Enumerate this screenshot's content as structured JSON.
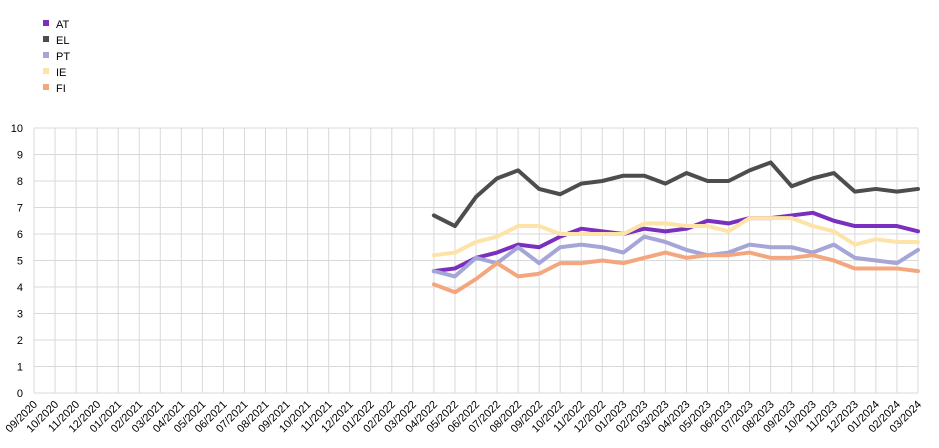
{
  "chart_data": {
    "type": "line",
    "title": "",
    "xlabel": "",
    "ylabel": "",
    "ylim": [
      0,
      10
    ],
    "yticks": [
      "0",
      "1",
      "2",
      "3",
      "4",
      "5",
      "6",
      "7",
      "8",
      "9",
      "10"
    ],
    "grid": true,
    "legend_position": "top-left",
    "categories": [
      "09/2020",
      "10/2020",
      "11/2020",
      "12/2020",
      "01/2021",
      "02/2021",
      "03/2021",
      "04/2021",
      "05/2021",
      "06/2021",
      "07/2021",
      "08/2021",
      "09/2021",
      "10/2021",
      "11/2021",
      "12/2021",
      "01/2022",
      "02/2022",
      "03/2022",
      "04/2022",
      "05/2022",
      "06/2022",
      "07/2022",
      "08/2022",
      "09/2022",
      "10/2022",
      "11/2022",
      "12/2022",
      "01/2023",
      "02/2023",
      "03/2023",
      "04/2023",
      "05/2023",
      "06/2023",
      "07/2023",
      "08/2023",
      "09/2023",
      "10/2023",
      "11/2023",
      "12/2023",
      "01/2024",
      "02/2024",
      "03/2024"
    ],
    "series": [
      {
        "name": "AT",
        "color": "#7B2FBE",
        "values": [
          null,
          null,
          null,
          null,
          null,
          null,
          null,
          null,
          null,
          null,
          null,
          null,
          null,
          null,
          null,
          null,
          null,
          null,
          null,
          4.6,
          4.7,
          5.1,
          5.3,
          5.6,
          5.5,
          5.9,
          6.2,
          6.1,
          6.0,
          6.2,
          6.1,
          6.2,
          6.5,
          6.4,
          6.6,
          6.6,
          6.7,
          6.8,
          6.5,
          6.3,
          6.3,
          6.3,
          6.1
        ]
      },
      {
        "name": "EL",
        "color": "#4D4D4D",
        "values": [
          null,
          null,
          null,
          null,
          null,
          null,
          null,
          null,
          null,
          null,
          null,
          null,
          null,
          null,
          null,
          null,
          null,
          null,
          null,
          6.7,
          6.3,
          7.4,
          8.1,
          8.4,
          7.7,
          7.5,
          7.9,
          8.0,
          8.2,
          8.2,
          7.9,
          8.3,
          8.0,
          8.0,
          8.4,
          8.7,
          7.8,
          8.1,
          8.3,
          7.6,
          7.7,
          7.6,
          7.7
        ]
      },
      {
        "name": "PT",
        "color": "#A5A5D8",
        "values": [
          null,
          null,
          null,
          null,
          null,
          null,
          null,
          null,
          null,
          null,
          null,
          null,
          null,
          null,
          null,
          null,
          null,
          null,
          null,
          4.6,
          4.4,
          5.1,
          4.9,
          5.5,
          4.9,
          5.5,
          5.6,
          5.5,
          5.3,
          5.9,
          5.7,
          5.4,
          5.2,
          5.3,
          5.6,
          5.5,
          5.5,
          5.3,
          5.6,
          5.1,
          5.0,
          4.9,
          5.4
        ]
      },
      {
        "name": "IE",
        "color": "#FDE3A7",
        "values": [
          null,
          null,
          null,
          null,
          null,
          null,
          null,
          null,
          null,
          null,
          null,
          null,
          null,
          null,
          null,
          null,
          null,
          null,
          null,
          5.2,
          5.3,
          5.7,
          5.9,
          6.3,
          6.3,
          6.0,
          6.0,
          6.0,
          6.0,
          6.4,
          6.4,
          6.3,
          6.3,
          6.1,
          6.6,
          6.6,
          6.6,
          6.3,
          6.1,
          5.6,
          5.8,
          5.7,
          5.7
        ]
      },
      {
        "name": "FI",
        "color": "#F4A77F",
        "values": [
          null,
          null,
          null,
          null,
          null,
          null,
          null,
          null,
          null,
          null,
          null,
          null,
          null,
          null,
          null,
          null,
          null,
          null,
          null,
          4.1,
          3.8,
          4.3,
          4.9,
          4.4,
          4.5,
          4.9,
          4.9,
          5.0,
          4.9,
          5.1,
          5.3,
          5.1,
          5.2,
          5.2,
          5.3,
          5.1,
          5.1,
          5.2,
          5.0,
          4.7,
          4.7,
          4.7,
          4.6
        ]
      }
    ]
  }
}
